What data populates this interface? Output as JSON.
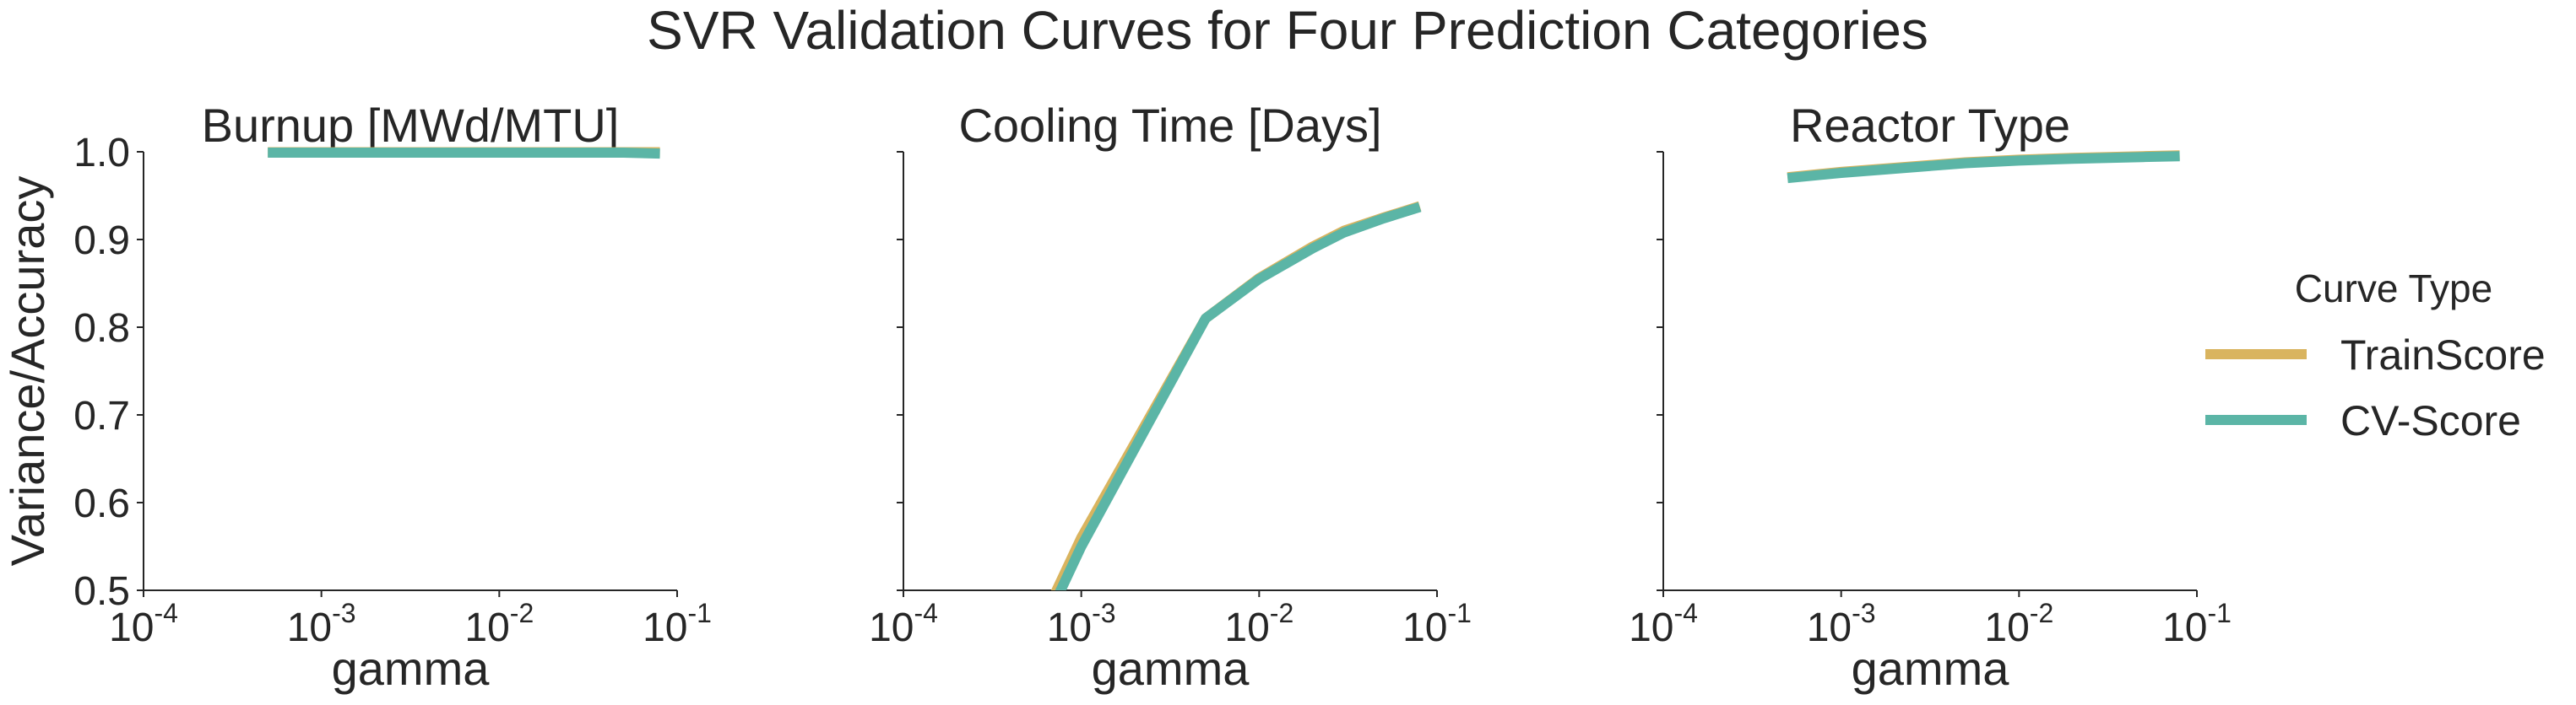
{
  "chart_data": {
    "type": "line",
    "title": "SVR Validation Curves for Four Prediction Categories",
    "ylabel": "Variance/Accuracy",
    "ylim": [
      0.5,
      1.0
    ],
    "yticks": [
      "0.5",
      "0.6",
      "0.7",
      "0.8",
      "0.9",
      "1.0"
    ],
    "xscale": "log",
    "xlim": [
      0.0001,
      0.1
    ],
    "xticks": [
      {
        "value": 0.0001,
        "base": "10",
        "exp": "-4"
      },
      {
        "value": 0.001,
        "base": "10",
        "exp": "-3"
      },
      {
        "value": 0.01,
        "base": "10",
        "exp": "-2"
      },
      {
        "value": 0.1,
        "base": "10",
        "exp": "-1"
      }
    ],
    "legend": {
      "title": "Curve Type",
      "position": "right",
      "entries": [
        {
          "name": "TrainScore",
          "color": "#d9b45f"
        },
        {
          "name": "CV-Score",
          "color": "#5bb5a6"
        }
      ]
    },
    "panels": [
      {
        "title": "Burnup [MWd/MTU]",
        "xlabel": "gamma",
        "series": [
          {
            "name": "TrainScore",
            "x": [
              0.0005,
              0.001,
              0.005,
              0.01,
              0.02,
              0.03,
              0.05,
              0.08
            ],
            "y": [
              0.9995,
              0.9995,
              0.9995,
              0.9995,
              0.9995,
              0.9995,
              0.9995,
              0.9995
            ]
          },
          {
            "name": "CV-Score",
            "x": [
              0.0005,
              0.001,
              0.005,
              0.01,
              0.02,
              0.03,
              0.05,
              0.08
            ],
            "y": [
              0.999,
              0.999,
              0.999,
              0.999,
              0.999,
              0.999,
              0.999,
              0.998
            ]
          }
        ]
      },
      {
        "title": "Cooling Time [Days]",
        "xlabel": "gamma",
        "series": [
          {
            "name": "TrainScore",
            "x": [
              0.0005,
              0.001,
              0.005,
              0.01,
              0.02,
              0.03,
              0.05,
              0.08
            ],
            "y": [
              0.43,
              0.56,
              0.81,
              0.856,
              0.892,
              0.91,
              0.925,
              0.938
            ]
          },
          {
            "name": "CV-Score",
            "x": [
              0.0005,
              0.001,
              0.005,
              0.01,
              0.02,
              0.03,
              0.05,
              0.08
            ],
            "y": [
              0.42,
              0.55,
              0.81,
              0.855,
              0.89,
              0.908,
              0.924,
              0.937
            ]
          }
        ]
      },
      {
        "title": "Reactor Type",
        "xlabel": "gamma",
        "series": [
          {
            "name": "TrainScore",
            "x": [
              0.0005,
              0.001,
              0.005,
              0.01,
              0.02,
              0.05,
              0.08
            ],
            "y": [
              0.971,
              0.977,
              0.988,
              0.991,
              0.993,
              0.995,
              0.996
            ]
          },
          {
            "name": "CV-Score",
            "x": [
              0.0005,
              0.001,
              0.005,
              0.01,
              0.02,
              0.05,
              0.08
            ],
            "y": [
              0.97,
              0.976,
              0.987,
              0.99,
              0.992,
              0.994,
              0.995
            ]
          }
        ]
      }
    ]
  }
}
